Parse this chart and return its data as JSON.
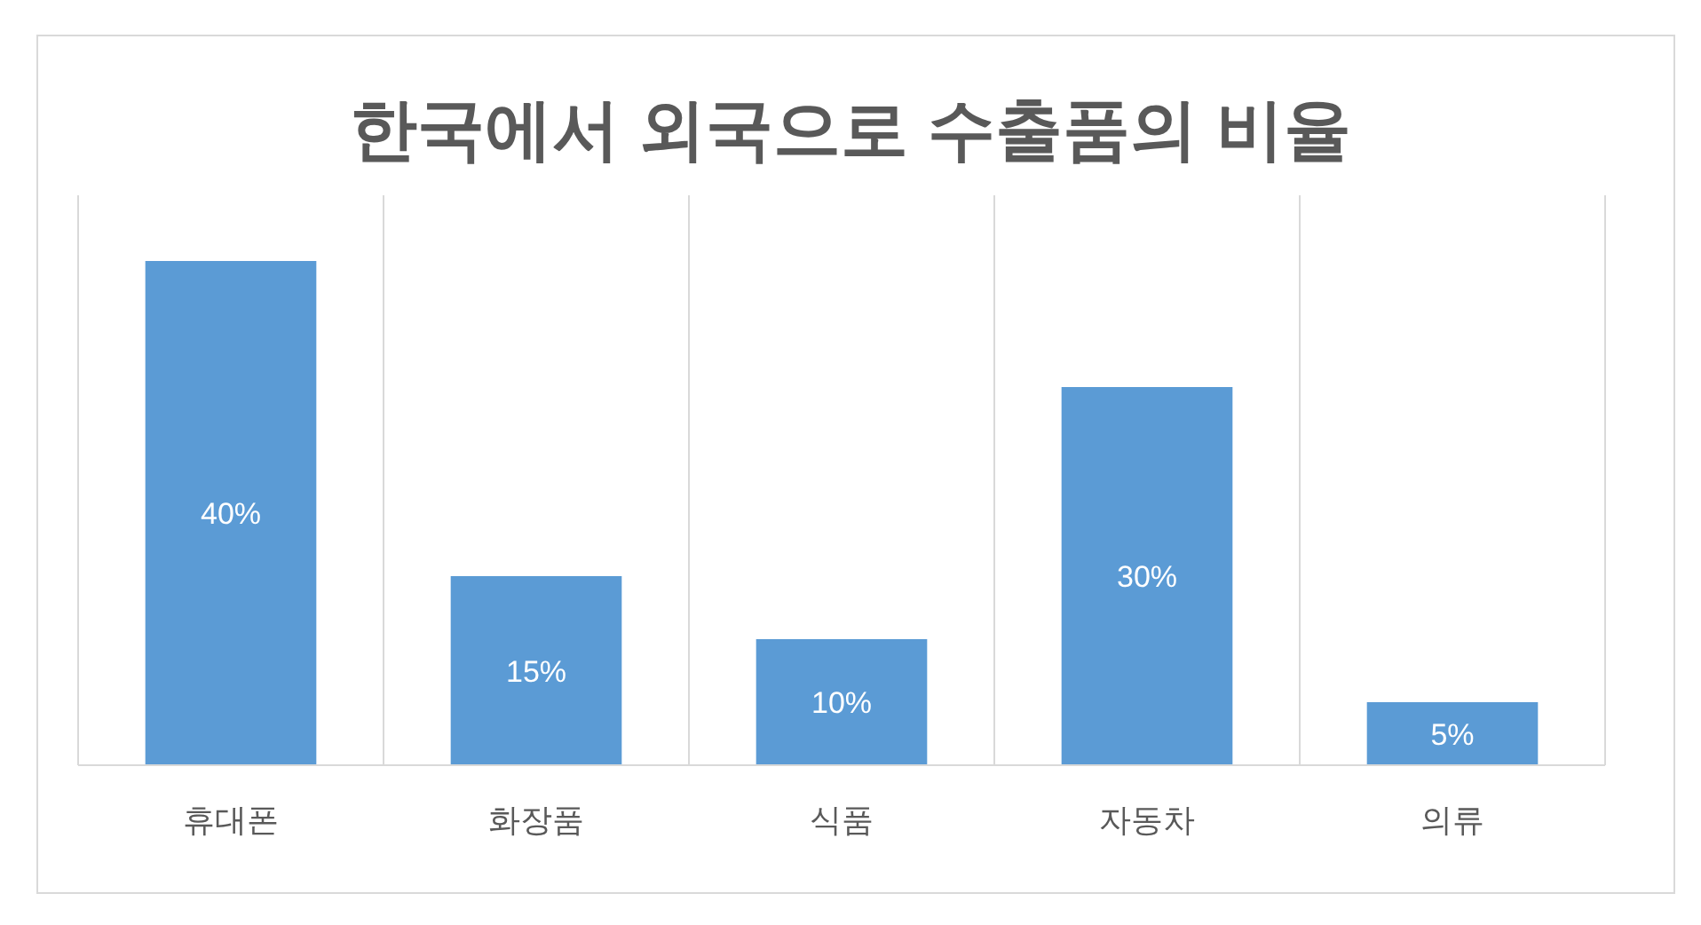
{
  "chart_data": {
    "type": "bar",
    "title": "한국에서 외국으로 수출품의 비율",
    "categories": [
      "휴대폰",
      "화장품",
      "식품",
      "자동차",
      "의류"
    ],
    "values": [
      40,
      15,
      10,
      30,
      5
    ],
    "value_labels": [
      "40%",
      "15%",
      "10%",
      "30%",
      "5%"
    ],
    "color": "#5b9bd5",
    "grid": "x"
  }
}
